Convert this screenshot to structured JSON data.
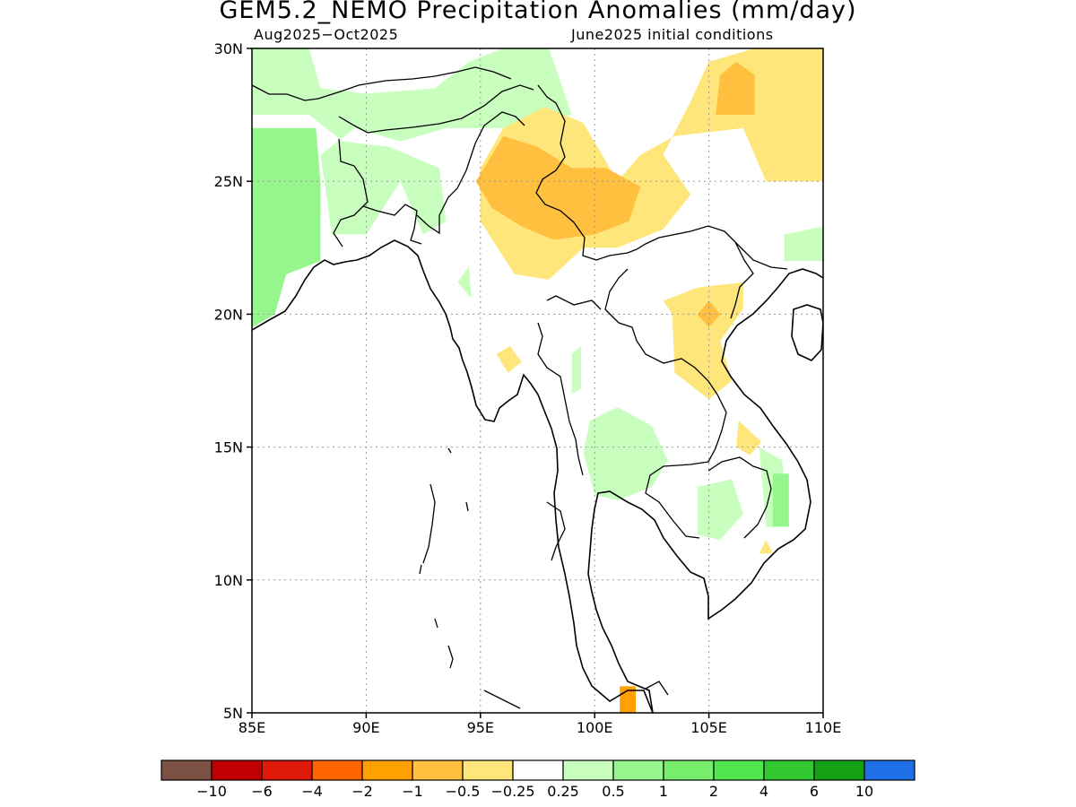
{
  "title": "GEM5.2_NEMO Precipitation Anomalies (mm/day)",
  "period": "Aug2025−Oct2025",
  "init": "June2025 initial conditions",
  "axes": {
    "lon_ticks": [
      "85E",
      "90E",
      "95E",
      "100E",
      "105E",
      "110E"
    ],
    "lon_values": [
      85,
      90,
      95,
      100,
      105,
      110
    ],
    "lat_ticks": [
      "30N",
      "25N",
      "20N",
      "15N",
      "10N",
      "5N"
    ],
    "lat_values": [
      30,
      25,
      20,
      15,
      10,
      5
    ],
    "lon_range": [
      85,
      110
    ],
    "lat_range": [
      5,
      30
    ],
    "grid": "dotted"
  },
  "colorbar": {
    "colors": [
      "#7a5143",
      "#c00000",
      "#e01a0a",
      "#ff6400",
      "#ffa000",
      "#ffc040",
      "#ffe67a",
      "#ffffff",
      "#c8ffbe",
      "#96f58c",
      "#78ee6e",
      "#50e650",
      "#32c832",
      "#14a014",
      "#1e6ee6"
    ],
    "labels": [
      "−10",
      "−6",
      "−4",
      "−2",
      "−1",
      "−0.5",
      "−0.25",
      "0.25",
      "0.5",
      "1",
      "2",
      "4",
      "6",
      "10"
    ]
  },
  "regions": [
    {
      "name": "wet-northwest-bangladesh",
      "color": "#96f58c",
      "pts": [
        [
          85,
          27
        ],
        [
          87.8,
          27
        ],
        [
          88,
          25
        ],
        [
          88,
          22
        ],
        [
          86.5,
          21.5
        ],
        [
          86,
          20
        ],
        [
          85,
          19.5
        ]
      ]
    },
    {
      "name": "light-wet-north",
      "color": "#c8ffbe",
      "pts": [
        [
          85,
          30
        ],
        [
          87.5,
          30
        ],
        [
          88,
          28.5
        ],
        [
          90,
          28.3
        ],
        [
          93,
          28.5
        ],
        [
          94.5,
          29.5
        ],
        [
          96,
          30
        ],
        [
          98,
          30
        ],
        [
          99,
          27.5
        ],
        [
          96,
          27
        ],
        [
          93.5,
          27
        ],
        [
          91.5,
          26.5
        ],
        [
          89.5,
          27
        ],
        [
          88,
          26
        ],
        [
          88.5,
          23
        ],
        [
          90,
          23
        ],
        [
          91.5,
          25
        ],
        [
          92.5,
          23
        ],
        [
          93.5,
          23.5
        ],
        [
          93.2,
          25.5
        ],
        [
          91,
          26.3
        ],
        [
          89,
          26.5
        ],
        [
          87.5,
          27.5
        ],
        [
          85,
          27.5
        ]
      ]
    },
    {
      "name": "light-wet-myanmar-west",
      "color": "#c8ffbe",
      "pts": [
        [
          94,
          21.2
        ],
        [
          94.5,
          21.8
        ],
        [
          94.6,
          20.6
        ]
      ]
    },
    {
      "name": "light-wet-east-corner",
      "color": "#c8ffbe",
      "pts": [
        [
          108.3,
          23
        ],
        [
          110,
          23.3
        ],
        [
          110,
          22
        ],
        [
          108.3,
          22
        ]
      ]
    },
    {
      "name": "light-dry-yunnan",
      "color": "#ffe67a",
      "pts": [
        [
          104.2,
          28
        ],
        [
          105,
          29.5
        ],
        [
          107,
          30
        ],
        [
          110,
          30
        ],
        [
          110,
          25
        ],
        [
          107.5,
          25
        ],
        [
          106.5,
          27
        ],
        [
          103.5,
          26.7
        ],
        [
          102,
          26
        ],
        [
          101,
          25
        ],
        [
          99.5,
          27.2
        ],
        [
          97.8,
          27.8
        ],
        [
          96,
          27
        ],
        [
          95,
          25.5
        ],
        [
          95,
          23.5
        ],
        [
          96.5,
          21.5
        ],
        [
          98,
          21.3
        ],
        [
          99.5,
          22.5
        ],
        [
          101,
          22.5
        ],
        [
          103,
          23.2
        ],
        [
          104.2,
          24.5
        ],
        [
          103,
          26
        ]
      ]
    },
    {
      "name": "dry-myanmar-yunnan",
      "color": "#ffc040",
      "pts": [
        [
          96,
          26.7
        ],
        [
          97.5,
          26.3
        ],
        [
          99,
          25.5
        ],
        [
          100.5,
          25.5
        ],
        [
          102,
          24.8
        ],
        [
          101.5,
          23.5
        ],
        [
          100,
          23
        ],
        [
          98.2,
          22.8
        ],
        [
          96.8,
          23.3
        ],
        [
          95.5,
          24
        ],
        [
          94.8,
          25
        ]
      ]
    },
    {
      "name": "dry-sichuan",
      "color": "#ffc040",
      "pts": [
        [
          105.5,
          29
        ],
        [
          106.2,
          29.5
        ],
        [
          107,
          29
        ],
        [
          107,
          27.5
        ],
        [
          105.3,
          27.5
        ]
      ]
    },
    {
      "name": "light-dry-laos",
      "color": "#ffe67a",
      "pts": [
        [
          103,
          20.5
        ],
        [
          104.5,
          21
        ],
        [
          106.5,
          21.2
        ],
        [
          106.5,
          20.2
        ],
        [
          105.5,
          19
        ],
        [
          106,
          17.5
        ],
        [
          105,
          16.8
        ],
        [
          103.5,
          17.8
        ],
        [
          103.4,
          20
        ]
      ]
    },
    {
      "name": "dry-laos-spot",
      "color": "#ffc040",
      "pts": [
        [
          104.5,
          20
        ],
        [
          105,
          20.5
        ],
        [
          105.5,
          20
        ],
        [
          105,
          19.5
        ]
      ]
    },
    {
      "name": "light-dry-myanmar-spot",
      "color": "#ffe67a",
      "pts": [
        [
          95.7,
          18.5
        ],
        [
          96.3,
          18.8
        ],
        [
          96.8,
          18.2
        ],
        [
          96.2,
          17.8
        ]
      ]
    },
    {
      "name": "light-dry-vietnam-spot",
      "color": "#ffe67a",
      "pts": [
        [
          106.3,
          16
        ],
        [
          107.3,
          15.2
        ],
        [
          106.8,
          14.7
        ],
        [
          106.2,
          15
        ]
      ]
    },
    {
      "name": "light-dry-south-spot",
      "color": "#ffe67a",
      "pts": [
        [
          107.5,
          11.5
        ],
        [
          107.8,
          11
        ],
        [
          107.2,
          11
        ]
      ]
    },
    {
      "name": "light-wet-thailand",
      "color": "#c8ffbe",
      "pts": [
        [
          99.8,
          16
        ],
        [
          101,
          16.5
        ],
        [
          102.5,
          15.8
        ],
        [
          103.2,
          14.5
        ],
        [
          102.5,
          13.5
        ],
        [
          101,
          13
        ],
        [
          100,
          13.2
        ],
        [
          99.5,
          14.8
        ]
      ]
    },
    {
      "name": "light-wet-cambodia",
      "color": "#c8ffbe",
      "pts": [
        [
          104.5,
          13.5
        ],
        [
          106,
          13.8
        ],
        [
          106.5,
          12.5
        ],
        [
          105.5,
          11.5
        ],
        [
          104.5,
          11.7
        ]
      ]
    },
    {
      "name": "light-wet-vietnam",
      "color": "#c8ffbe",
      "pts": [
        [
          107.2,
          15
        ],
        [
          108.2,
          14.5
        ],
        [
          108.5,
          12
        ],
        [
          107.5,
          12
        ]
      ]
    },
    {
      "name": "wet-vietnam",
      "color": "#96f58c",
      "pts": [
        [
          107.8,
          14
        ],
        [
          108.5,
          14
        ],
        [
          108.5,
          12
        ],
        [
          107.8,
          12
        ]
      ]
    },
    {
      "name": "light-wet-thailand-spot",
      "color": "#c8ffbe",
      "pts": [
        [
          99,
          18.5
        ],
        [
          99.4,
          18.8
        ],
        [
          99.4,
          17.2
        ],
        [
          99,
          17
        ]
      ]
    },
    {
      "name": "moderate-dry-malaysia",
      "color": "#ffa000",
      "pts": [
        [
          101.1,
          5
        ],
        [
          101.1,
          6
        ],
        [
          101.8,
          6
        ],
        [
          101.8,
          5
        ]
      ]
    }
  ]
}
